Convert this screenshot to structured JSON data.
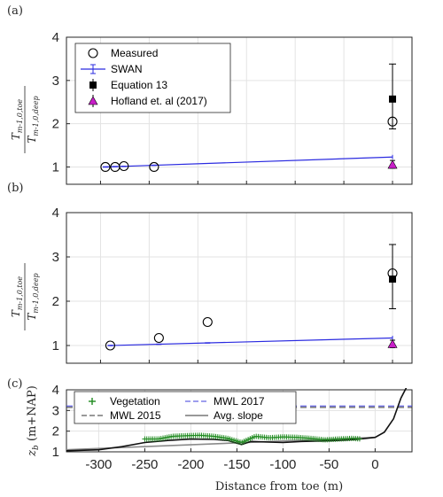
{
  "chart_data": [
    {
      "panel": "(a)",
      "type": "scatter",
      "ylabel_num": "T_{m-1,0,toe}",
      "ylabel_den": "T_{m-1,0,deep}",
      "xlim": [
        -335,
        20
      ],
      "ylim": [
        0.6,
        4
      ],
      "yticks": [
        1,
        2,
        3,
        4
      ],
      "grid": true,
      "legend": {
        "placement": "top-left",
        "entries": [
          "Measured",
          "SWAN",
          "Equation 13",
          "Hofland et. al (2017)"
        ]
      },
      "series": [
        {
          "name": "Measured",
          "x": [
            -295,
            -285,
            -276,
            -245,
            0
          ],
          "y": [
            1.0,
            1.0,
            1.02,
            1.0,
            2.05
          ]
        },
        {
          "name": "SWAN",
          "x": [
            -295,
            0
          ],
          "y": [
            1.0,
            1.23
          ]
        },
        {
          "name": "Equation 13",
          "x": [
            0
          ],
          "y": [
            2.57
          ],
          "err_low": [
            1.88
          ],
          "err_high": [
            3.38
          ]
        },
        {
          "name": "Hofland et. al (2017)",
          "x": [
            0
          ],
          "y": [
            1.05
          ],
          "err_low": [
            0.97
          ],
          "err_high": [
            1.15
          ]
        }
      ]
    },
    {
      "panel": "(b)",
      "type": "scatter",
      "ylabel_num": "T_{m-1,0,toe}",
      "ylabel_den": "T_{m-1,0,deep}",
      "xlim": [
        -335,
        20
      ],
      "ylim": [
        0.6,
        4
      ],
      "yticks": [
        1,
        2,
        3,
        4
      ],
      "grid": true,
      "series": [
        {
          "name": "Measured",
          "x": [
            -290,
            -240,
            -190,
            0
          ],
          "y": [
            1.0,
            1.17,
            1.53,
            2.63
          ]
        },
        {
          "name": "SWAN",
          "x": [
            -290,
            0
          ],
          "y": [
            1.0,
            1.17
          ]
        },
        {
          "name": "Equation 13",
          "x": [
            0
          ],
          "y": [
            2.5
          ],
          "err_low": [
            1.83
          ],
          "err_high": [
            3.28
          ]
        },
        {
          "name": "Hofland et. al (2017)",
          "x": [
            0
          ],
          "y": [
            1.03
          ],
          "err_low": [
            0.95
          ],
          "err_high": [
            1.12
          ]
        }
      ]
    },
    {
      "panel": "(c)",
      "type": "line",
      "ylabel": "z_b (m+NAP)",
      "xlabel": "Distance from toe (m)",
      "xlim": [
        -335,
        40
      ],
      "ylim": [
        1,
        4
      ],
      "xticks": [
        -300,
        -250,
        -200,
        -150,
        -100,
        -50,
        0
      ],
      "yticks": [
        1,
        2,
        3,
        4
      ],
      "grid": true,
      "legend": {
        "placement": "top-left",
        "entries": [
          "Vegetation",
          "MWL 2017",
          "MWL 2015",
          "Avg. slope"
        ]
      },
      "series": [
        {
          "name": "MWL 2017",
          "y": 3.22
        },
        {
          "name": "MWL 2015",
          "y": 3.15
        },
        {
          "name": "Avg. slope",
          "x": [
            -335,
            0
          ],
          "y": [
            1.1,
            1.7
          ]
        },
        {
          "name": "Bed",
          "x": [
            -335,
            -300,
            -275,
            -250,
            -225,
            -200,
            -175,
            -160,
            -145,
            -135,
            -120,
            -100,
            -80,
            -60,
            -40,
            -20,
            0,
            10,
            20,
            28,
            35
          ],
          "y": [
            1.05,
            1.1,
            1.25,
            1.45,
            1.55,
            1.62,
            1.6,
            1.55,
            1.35,
            1.5,
            1.48,
            1.45,
            1.5,
            1.52,
            1.55,
            1.6,
            1.7,
            1.95,
            2.6,
            3.6,
            4.2
          ]
        },
        {
          "name": "Vegetation",
          "x_range": [
            -250,
            -15
          ],
          "samples_x": [
            -250,
            -235,
            -220,
            -205,
            -190,
            -175,
            -160,
            -145,
            -130,
            -115,
            -100,
            -85,
            -70,
            -55,
            -40,
            -25,
            -15
          ],
          "samples_y": [
            1.62,
            1.62,
            1.75,
            1.78,
            1.8,
            1.75,
            1.65,
            1.45,
            1.75,
            1.68,
            1.72,
            1.7,
            1.65,
            1.58,
            1.62,
            1.65,
            1.62
          ]
        }
      ]
    }
  ]
}
